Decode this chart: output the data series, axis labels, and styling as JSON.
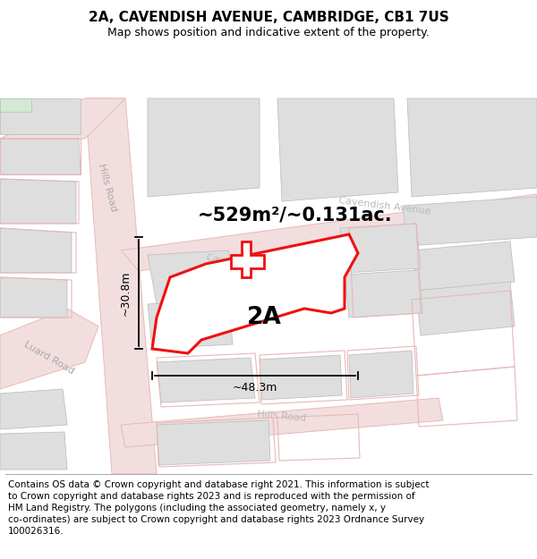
{
  "title": "2A, CAVENDISH AVENUE, CAMBRIDGE, CB1 7US",
  "subtitle": "Map shows position and indicative extent of the property.",
  "footer": "Contains OS data © Crown copyright and database right 2021. This information is subject to Crown copyright and database rights 2023 and is reproduced with the permission of HM Land Registry. The polygons (including the associated geometry, namely x, y co-ordinates) are subject to Crown copyright and database rights 2023 Ordnance Survey 100026316.",
  "area_label": "~529m²/~0.131ac.",
  "dim_width": "~48.3m",
  "dim_height": "~30.8m",
  "property_label": "2A",
  "map_bg": "#f8f7f5",
  "road_color": "#f2dede",
  "road_border": "#e8b8b8",
  "building_color": "#dedede",
  "building_border": "#c0c0c0",
  "highlight_color": "#ee1111",
  "green_patch": "#d4e8d4",
  "title_fontsize": 11,
  "subtitle_fontsize": 9,
  "footer_fontsize": 7.5,
  "area_fontsize": 15,
  "dim_fontsize": 9,
  "label_fontsize": 19
}
